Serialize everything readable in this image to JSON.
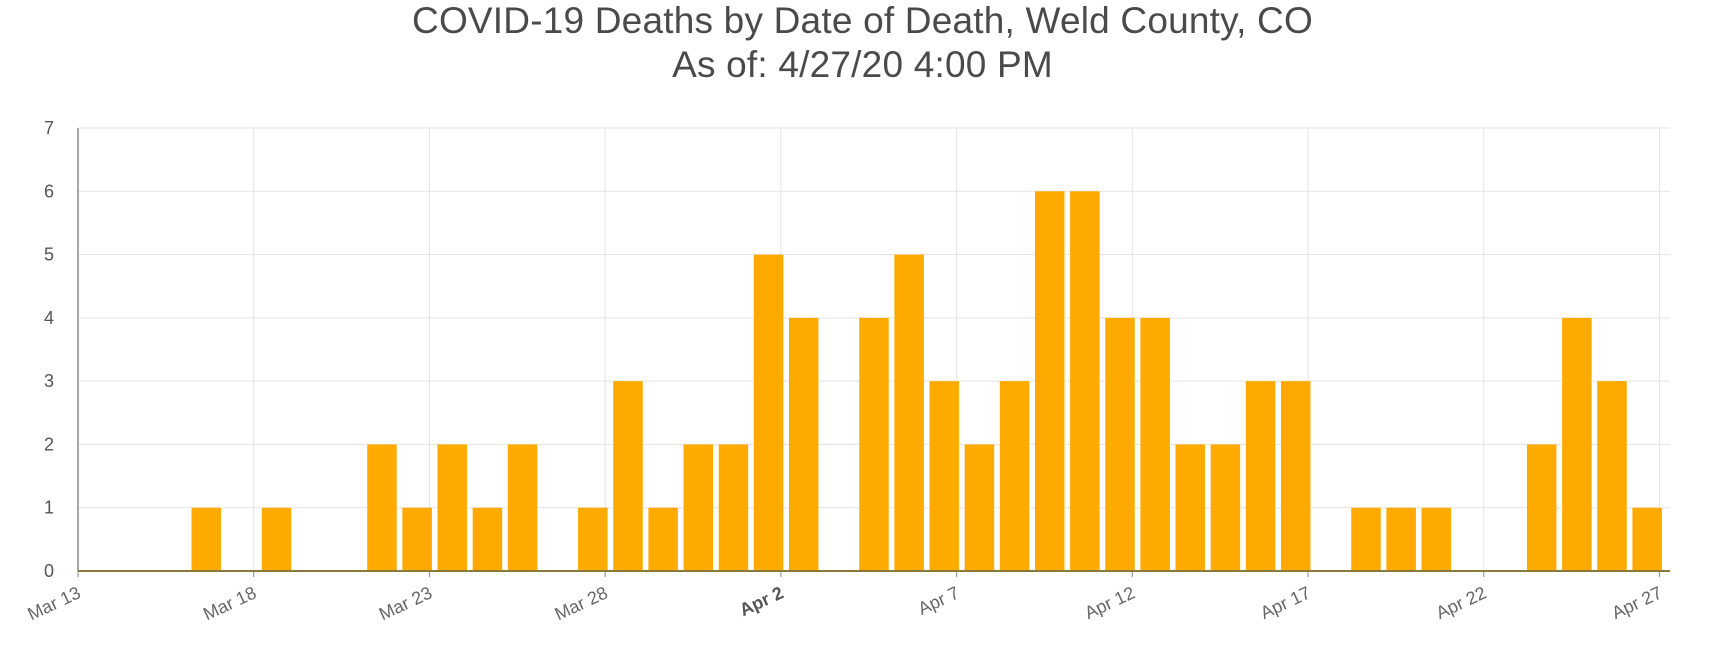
{
  "chart_data": {
    "type": "bar",
    "title": "COVID-19 Deaths by Date of Death, Weld County, CO",
    "subtitle": "As of: 4/27/20 4:00 PM",
    "xlabel": "",
    "ylabel": "",
    "categories": [
      "Mar 13",
      "Mar 14",
      "Mar 15",
      "Mar 16",
      "Mar 17",
      "Mar 18",
      "Mar 19",
      "Mar 20",
      "Mar 21",
      "Mar 22",
      "Mar 23",
      "Mar 24",
      "Mar 25",
      "Mar 26",
      "Mar 27",
      "Mar 28",
      "Mar 29",
      "Mar 30",
      "Mar 31",
      "Apr 1",
      "Apr 2",
      "Apr 3",
      "Apr 4",
      "Apr 5",
      "Apr 6",
      "Apr 7",
      "Apr 8",
      "Apr 9",
      "Apr 10",
      "Apr 11",
      "Apr 12",
      "Apr 13",
      "Apr 14",
      "Apr 15",
      "Apr 16",
      "Apr 17",
      "Apr 18",
      "Apr 19",
      "Apr 20",
      "Apr 21",
      "Apr 22",
      "Apr 23",
      "Apr 24",
      "Apr 25",
      "Apr 26"
    ],
    "values": [
      0,
      0,
      0,
      1,
      0,
      1,
      0,
      0,
      2,
      1,
      2,
      1,
      2,
      0,
      1,
      3,
      1,
      2,
      2,
      5,
      4,
      0,
      4,
      5,
      3,
      2,
      3,
      6,
      6,
      4,
      4,
      2,
      2,
      3,
      3,
      0,
      1,
      1,
      1,
      0,
      0,
      2,
      4,
      3,
      1
    ],
    "x_tick_labels": [
      "Mar 13",
      "Mar 18",
      "Mar 23",
      "Mar 28",
      "Apr 2",
      "Apr 7",
      "Apr 12",
      "Apr 17",
      "Apr 22",
      "Apr 27"
    ],
    "emphasized_tick": "Apr 2",
    "y_ticks": [
      "0",
      "1",
      "2",
      "3",
      "4",
      "5",
      "6",
      "7"
    ],
    "ylim": [
      0,
      7
    ],
    "grid": true,
    "bar_color": "#FFAA00",
    "baseline_color": "#8a7a3a"
  }
}
